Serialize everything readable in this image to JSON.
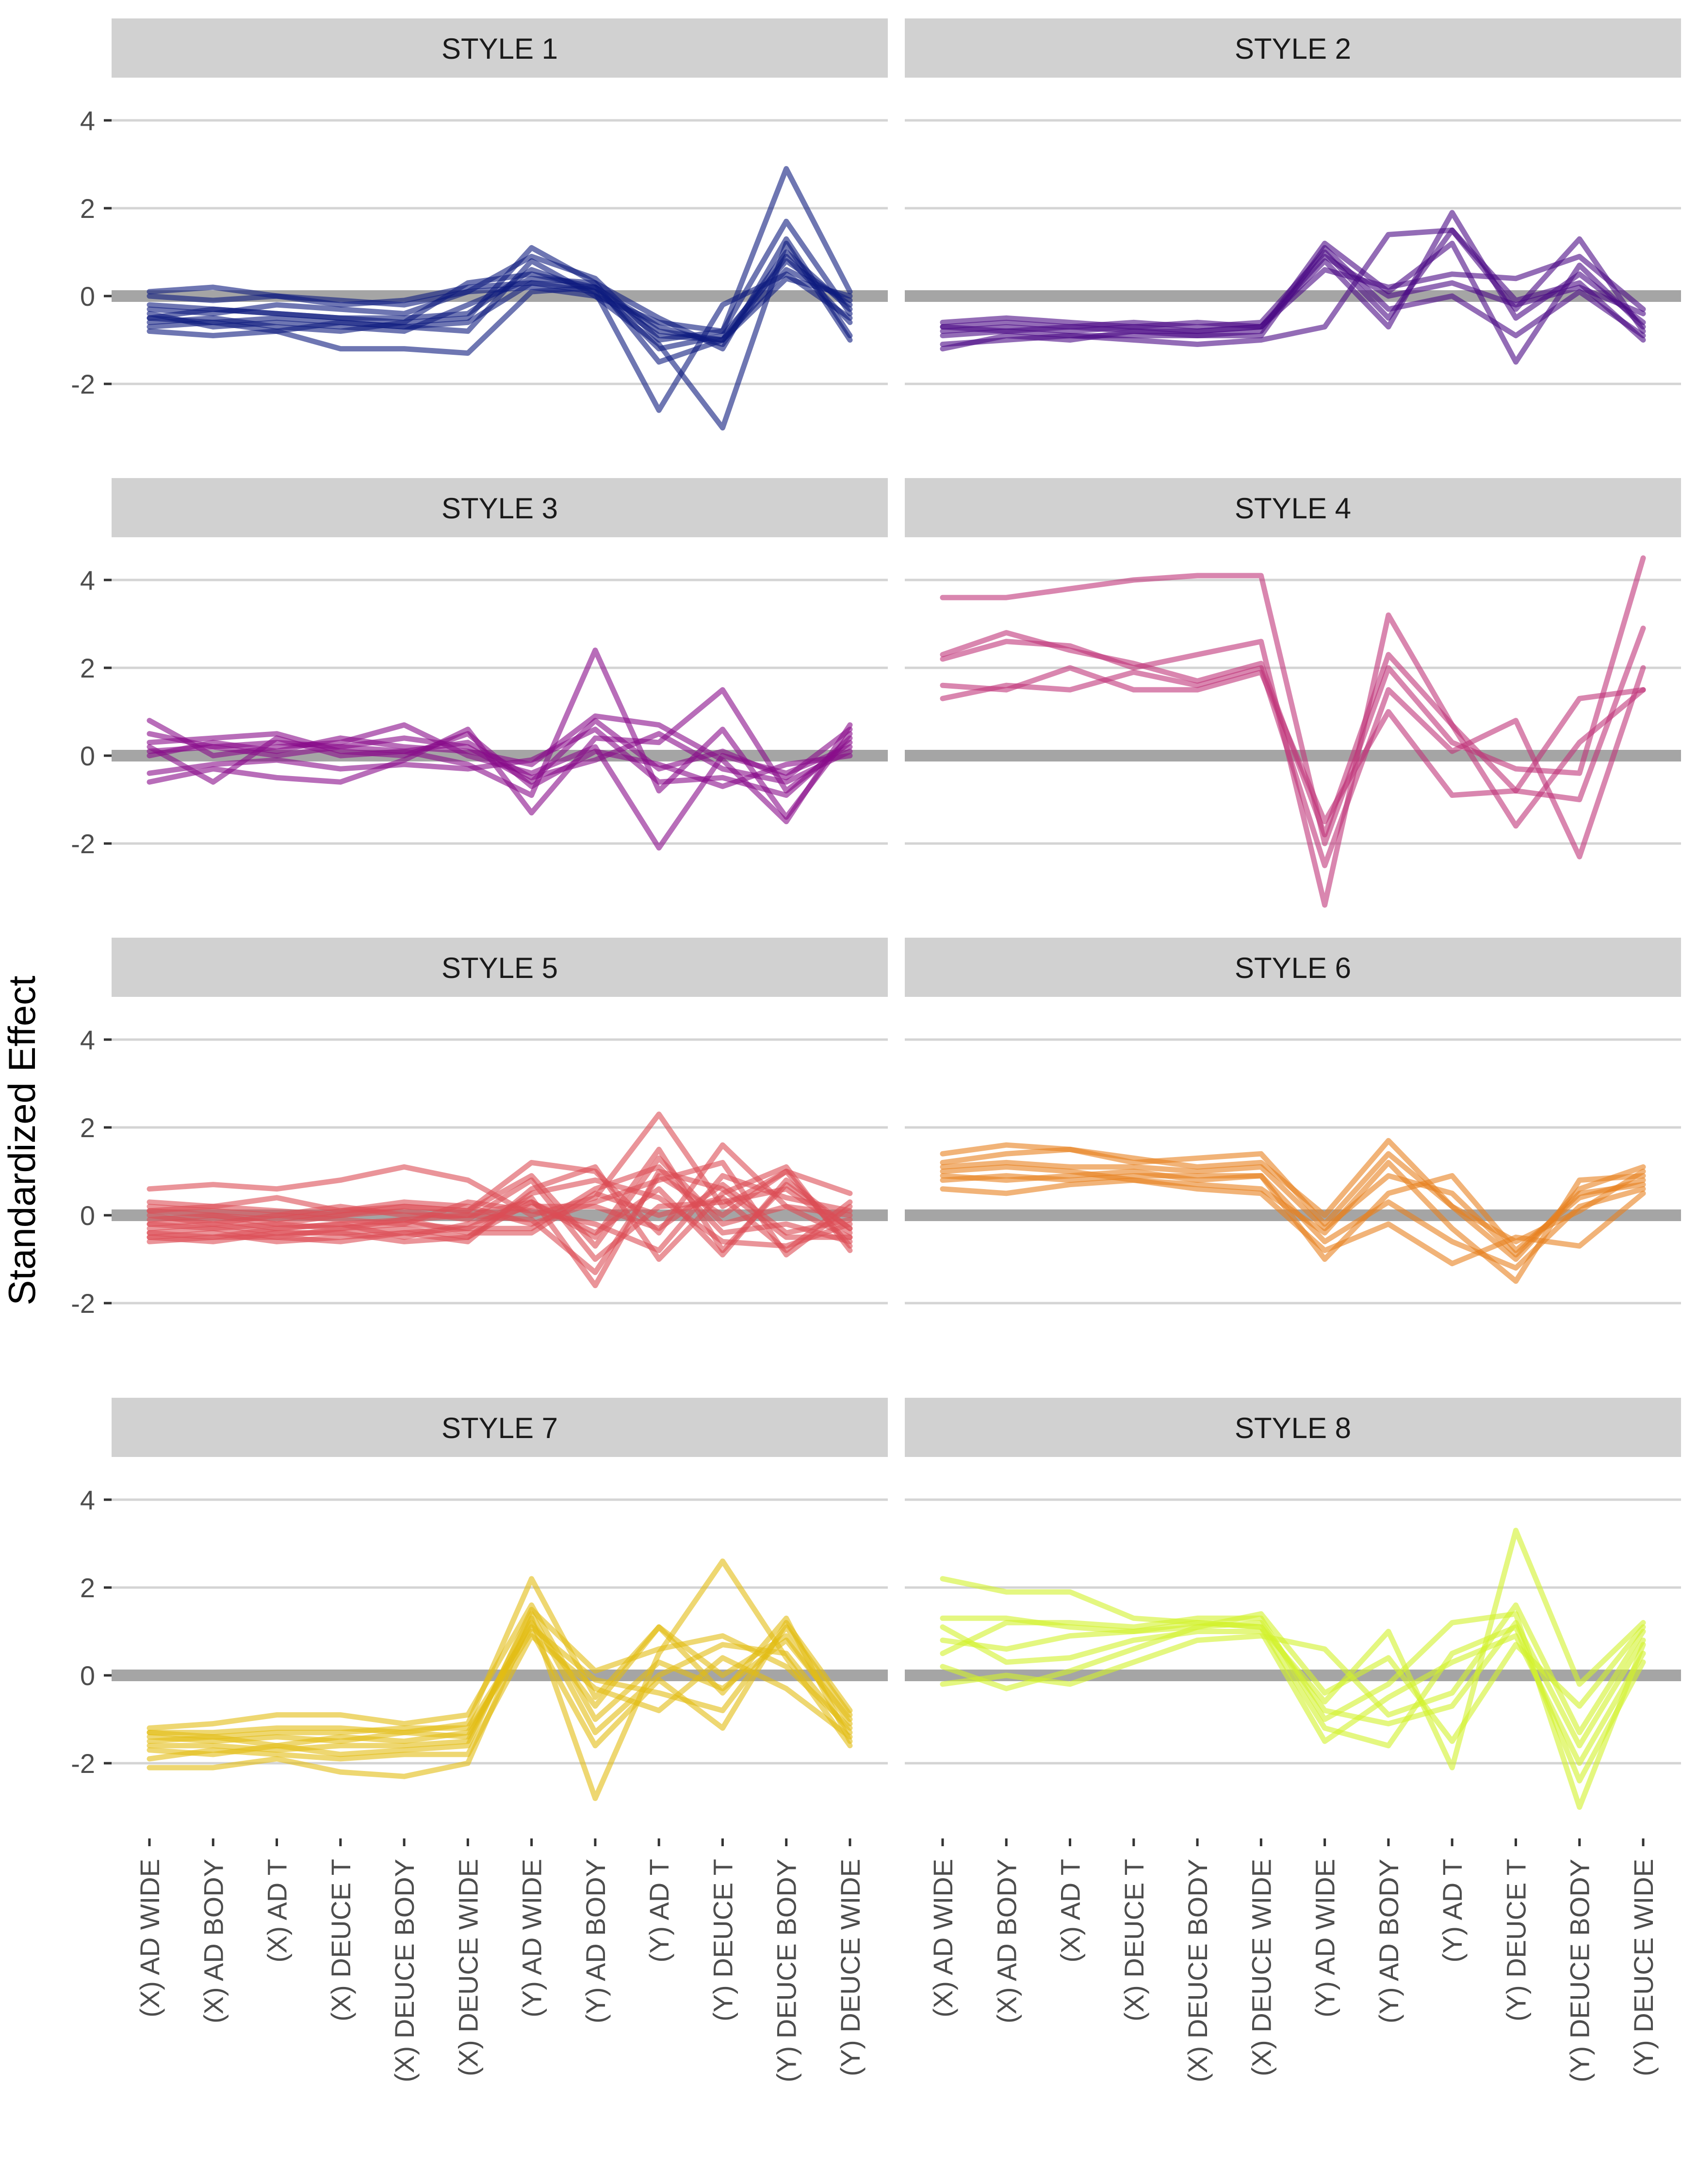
{
  "chart_data": {
    "type": "line",
    "ylabel": "Standardized Effect",
    "yticks": [
      4,
      2,
      0,
      -2
    ],
    "ytick_labels": [
      "4",
      "2",
      "0",
      "-2"
    ],
    "ylim": [
      -3.5,
      4.6
    ],
    "grid": true,
    "legend": "none",
    "categories": [
      "(X) AD WIDE",
      "(X) AD BODY",
      "(X) AD T",
      "(X) DEUCE T",
      "(X) DEUCE BODY",
      "(X) DEUCE WIDE",
      "(Y) AD WIDE",
      "(Y) AD BODY",
      "(Y) AD T",
      "(Y) DEUCE T",
      "(Y) DEUCE BODY",
      "(Y) DEUCE WIDE"
    ],
    "panels": [
      {
        "title": "STYLE 1",
        "color": "#0d1a7e",
        "lines": [
          [
            -0.5,
            -0.6,
            -0.5,
            -0.6,
            -0.7,
            -0.6,
            0.3,
            0.2,
            -0.8,
            -1.0,
            1.0,
            -0.3
          ],
          [
            -0.6,
            -0.5,
            -0.7,
            -0.8,
            -0.6,
            -0.5,
            1.1,
            0.3,
            -1.5,
            -1.0,
            0.4,
            0.0
          ],
          [
            -0.8,
            -0.9,
            -0.8,
            -1.2,
            -1.2,
            -1.3,
            0.1,
            0.2,
            -1.2,
            -0.9,
            0.8,
            -0.2
          ],
          [
            -0.2,
            -0.3,
            -0.4,
            -0.5,
            -0.5,
            -0.4,
            0.6,
            0.1,
            -2.6,
            -0.2,
            0.5,
            -0.5
          ],
          [
            0.1,
            0.2,
            0.0,
            -0.1,
            -0.2,
            0.1,
            0.9,
            0.4,
            -1.0,
            -0.8,
            2.9,
            0.1
          ],
          [
            -0.4,
            -0.7,
            -0.6,
            -0.7,
            -0.8,
            -0.2,
            0.4,
            0.3,
            -0.5,
            -1.2,
            1.3,
            -0.9
          ],
          [
            -0.3,
            -0.4,
            -0.2,
            -0.3,
            -0.4,
            0.1,
            0.2,
            0.0,
            -0.6,
            -0.8,
            1.7,
            -0.4
          ],
          [
            -0.7,
            -0.6,
            -0.8,
            -0.6,
            -0.7,
            -0.8,
            0.8,
            0.0,
            -1.1,
            -3.0,
            1.2,
            -1.0
          ],
          [
            -0.5,
            -0.3,
            -0.4,
            -0.5,
            -0.6,
            0.3,
            0.5,
            0.2,
            -0.7,
            -1.1,
            0.9,
            -0.6
          ],
          [
            0.0,
            -0.1,
            0.0,
            -0.2,
            -0.1,
            0.2,
            0.3,
            0.1,
            -0.9,
            -1.0,
            0.6,
            -0.1
          ]
        ]
      },
      {
        "title": "STYLE 2",
        "color": "#4b0a85",
        "lines": [
          [
            -0.7,
            -0.6,
            -0.7,
            -0.6,
            -0.7,
            -0.6,
            1.0,
            -0.5,
            1.5,
            -0.3,
            1.3,
            -0.8
          ],
          [
            -0.9,
            -0.8,
            -0.9,
            -0.9,
            -0.9,
            -0.8,
            1.2,
            0.1,
            1.2,
            -1.5,
            0.7,
            -0.7
          ],
          [
            -1.1,
            -1.0,
            -0.9,
            -1.0,
            -1.1,
            -1.0,
            -0.7,
            1.4,
            1.5,
            -0.1,
            0.3,
            -1.0
          ],
          [
            -0.8,
            -0.7,
            -0.8,
            -0.7,
            -0.8,
            -0.7,
            0.8,
            -0.7,
            1.9,
            -0.5,
            0.5,
            -0.6
          ],
          [
            -0.6,
            -0.5,
            -0.6,
            -0.7,
            -0.6,
            -0.7,
            0.6,
            0.2,
            0.5,
            0.4,
            0.9,
            -0.3
          ],
          [
            -1.2,
            -0.9,
            -1.0,
            -0.8,
            -0.9,
            -0.9,
            1.1,
            -0.3,
            0.0,
            -0.9,
            0.1,
            -0.9
          ],
          [
            -0.7,
            -0.8,
            -0.7,
            -0.8,
            -0.8,
            -0.7,
            0.9,
            0.0,
            0.3,
            -0.2,
            0.2,
            -0.4
          ]
        ]
      },
      {
        "title": "STYLE 3",
        "color": "#880c8a",
        "lines": [
          [
            0.5,
            0.2,
            0.3,
            0.2,
            0.4,
            0.2,
            -0.6,
            0.8,
            -0.3,
            0.1,
            -0.5,
            0.6
          ],
          [
            0.2,
            -0.6,
            0.4,
            0.0,
            0.1,
            -0.2,
            -0.9,
            2.4,
            -0.8,
            0.6,
            -1.4,
            0.5
          ],
          [
            -0.6,
            -0.3,
            -0.5,
            -0.6,
            -0.1,
            0.6,
            -1.3,
            0.4,
            0.3,
            1.5,
            -0.8,
            0.3
          ],
          [
            0.8,
            0.0,
            0.2,
            0.3,
            0.7,
            0.0,
            -0.4,
            0.2,
            -2.1,
            0.0,
            -0.4,
            0.2
          ],
          [
            0.0,
            0.3,
            0.1,
            0.4,
            0.2,
            0.1,
            -0.2,
            0.9,
            0.7,
            -0.1,
            -1.5,
            0.7
          ],
          [
            0.3,
            0.4,
            0.5,
            0.1,
            0.0,
            0.5,
            -0.7,
            0.1,
            -0.2,
            -0.7,
            -0.2,
            0.0
          ],
          [
            -0.4,
            -0.2,
            -0.1,
            -0.3,
            -0.2,
            -0.3,
            -0.1,
            0.6,
            -0.6,
            -0.5,
            -0.9,
            0.4
          ],
          [
            0.1,
            0.2,
            0.0,
            0.2,
            0.1,
            0.3,
            -0.5,
            -0.1,
            0.5,
            -0.3,
            -0.6,
            0.1
          ]
        ]
      },
      {
        "title": "STYLE 4",
        "color": "#c0357a",
        "lines": [
          [
            3.6,
            3.6,
            3.8,
            4.0,
            4.1,
            4.1,
            -2.0,
            2.0,
            0.3,
            -0.3,
            -0.4,
            4.5
          ],
          [
            2.2,
            2.6,
            2.5,
            2.0,
            2.3,
            2.6,
            -3.4,
            3.2,
            0.7,
            -0.8,
            -1.0,
            2.9
          ],
          [
            1.6,
            1.5,
            2.0,
            1.5,
            1.5,
            1.9,
            -1.5,
            1.0,
            -0.9,
            -0.8,
            1.3,
            1.5
          ],
          [
            1.3,
            1.6,
            1.5,
            1.9,
            1.6,
            2.0,
            -2.5,
            1.5,
            0.1,
            0.8,
            -2.3,
            2.0
          ],
          [
            2.3,
            2.8,
            2.4,
            2.1,
            1.7,
            2.1,
            -1.8,
            2.3,
            0.7,
            -1.6,
            0.3,
            1.5
          ]
        ]
      },
      {
        "title": "STYLE 5",
        "color": "#dc4d55",
        "lines": [
          [
            0.6,
            0.7,
            0.6,
            0.8,
            1.1,
            0.8,
            0.0,
            0.4,
            2.3,
            0.2,
            1.0,
            0.5
          ],
          [
            -0.4,
            -0.3,
            -0.5,
            -0.3,
            -0.2,
            -0.3,
            0.4,
            -1.6,
            1.0,
            0.6,
            -0.5,
            -0.5
          ],
          [
            0.1,
            0.2,
            0.1,
            0.0,
            0.2,
            0.1,
            1.2,
            1.0,
            -0.4,
            1.6,
            0.2,
            0.0
          ],
          [
            -0.2,
            -0.1,
            -0.3,
            -0.2,
            -0.1,
            0.0,
            0.3,
            -0.5,
            1.5,
            -0.8,
            0.7,
            -0.3
          ],
          [
            -0.5,
            -0.4,
            -0.6,
            -0.5,
            -0.4,
            -0.6,
            0.6,
            1.1,
            -1.0,
            0.5,
            1.1,
            -0.8
          ],
          [
            0.3,
            0.2,
            0.4,
            0.1,
            0.3,
            0.2,
            -0.2,
            0.3,
            0.8,
            1.2,
            -0.9,
            0.2
          ],
          [
            -0.1,
            0.0,
            -0.2,
            0.0,
            0.1,
            -0.1,
            0.8,
            -1.0,
            0.2,
            0.3,
            0.6,
            -0.4
          ],
          [
            -0.6,
            -0.5,
            -0.5,
            -0.6,
            -0.4,
            -0.3,
            -0.3,
            0.6,
            1.1,
            -0.4,
            -0.2,
            -0.6
          ],
          [
            0.0,
            -0.2,
            0.0,
            -0.1,
            -0.2,
            0.3,
            0.1,
            -0.2,
            -0.8,
            0.9,
            0.4,
            0.1
          ],
          [
            -0.3,
            -0.2,
            -0.4,
            -0.4,
            -0.3,
            -0.5,
            0.5,
            0.8,
            0.4,
            -0.6,
            -0.7,
            -0.2
          ],
          [
            0.2,
            0.1,
            0.0,
            0.2,
            0.0,
            0.0,
            -0.1,
            -1.3,
            0.9,
            0.0,
            1.0,
            -0.7
          ],
          [
            -0.4,
            -0.5,
            -0.3,
            -0.2,
            -0.5,
            -0.2,
            0.2,
            0.2,
            -0.3,
            0.7,
            -0.4,
            -0.1
          ],
          [
            0.1,
            0.0,
            -0.1,
            0.1,
            0.2,
            0.1,
            0.9,
            -0.7,
            1.3,
            -0.2,
            0.2,
            -0.5
          ],
          [
            -0.2,
            -0.3,
            -0.2,
            -0.3,
            -0.1,
            -0.4,
            -0.4,
            0.5,
            0.0,
            0.4,
            -0.8,
            0.3
          ],
          [
            -0.5,
            -0.6,
            -0.4,
            -0.4,
            -0.6,
            -0.5,
            0.3,
            -0.4,
            0.6,
            -0.9,
            0.8,
            -0.3
          ]
        ]
      },
      {
        "title": "STYLE 6",
        "color": "#e8801e",
        "lines": [
          [
            1.2,
            1.4,
            1.5,
            1.3,
            1.1,
            1.2,
            0.0,
            1.7,
            0.2,
            -1.0,
            0.6,
            1.1
          ],
          [
            0.8,
            0.9,
            0.8,
            0.9,
            0.9,
            0.9,
            -1.0,
            0.5,
            0.9,
            -0.8,
            0.4,
            0.8
          ],
          [
            1.0,
            1.1,
            1.0,
            0.8,
            0.7,
            0.6,
            -0.4,
            1.2,
            -0.3,
            -1.5,
            0.8,
            0.9
          ],
          [
            0.6,
            0.5,
            0.7,
            0.8,
            0.6,
            0.5,
            -0.8,
            -0.2,
            -1.1,
            -0.5,
            -0.7,
            0.5
          ],
          [
            1.4,
            1.6,
            1.5,
            1.2,
            1.3,
            1.4,
            -0.2,
            1.4,
            0.2,
            -0.6,
            0.1,
            1.0
          ],
          [
            0.9,
            0.8,
            0.9,
            1.0,
            0.8,
            0.9,
            -0.6,
            0.3,
            -0.6,
            -1.2,
            0.2,
            0.6
          ],
          [
            1.1,
            1.2,
            1.1,
            1.1,
            1.0,
            1.1,
            -0.3,
            0.9,
            0.5,
            -0.9,
            0.5,
            0.7
          ]
        ]
      },
      {
        "title": "STYLE 7",
        "color": "#e3bd12",
        "lines": [
          [
            -1.3,
            -1.3,
            -1.2,
            -1.2,
            -1.3,
            -1.1,
            2.2,
            -0.5,
            1.1,
            -0.4,
            1.3,
            -1.5
          ],
          [
            -2.1,
            -2.1,
            -1.9,
            -2.2,
            -2.3,
            -2.0,
            1.3,
            -2.8,
            0.5,
            2.6,
            0.4,
            -1.6
          ],
          [
            -1.5,
            -1.4,
            -1.6,
            -1.4,
            -1.5,
            -1.3,
            1.0,
            -1.6,
            -0.1,
            -1.2,
            1.2,
            -0.8
          ],
          [
            -1.7,
            -1.8,
            -1.6,
            -1.8,
            -1.7,
            -1.6,
            1.5,
            0.1,
            0.6,
            0.9,
            0.2,
            -1.2
          ],
          [
            -1.2,
            -1.1,
            -0.9,
            -0.9,
            -1.1,
            -0.9,
            1.6,
            -1.0,
            0.3,
            -0.3,
            0.8,
            -1.0
          ],
          [
            -1.9,
            -1.7,
            -1.8,
            -1.9,
            -1.8,
            -1.8,
            0.9,
            -0.3,
            -0.8,
            0.4,
            -0.3,
            -1.4
          ],
          [
            -1.4,
            -1.5,
            -1.4,
            -1.5,
            -1.3,
            -1.4,
            1.2,
            -0.7,
            1.1,
            0.0,
            0.9,
            -1.1
          ],
          [
            -1.6,
            -1.6,
            -1.7,
            -1.6,
            -1.6,
            -1.5,
            1.4,
            -1.3,
            0.0,
            0.7,
            0.5,
            -1.3
          ],
          [
            -1.3,
            -1.4,
            -1.3,
            -1.3,
            -1.2,
            -1.2,
            1.1,
            -0.1,
            -0.4,
            -0.8,
            1.1,
            -0.9
          ]
        ]
      },
      {
        "title": "STYLE 8",
        "color": "#d2f22c",
        "lines": [
          [
            2.2,
            1.9,
            1.9,
            1.3,
            1.2,
            1.1,
            -0.6,
            1.0,
            -2.1,
            3.3,
            -0.2,
            1.2
          ],
          [
            0.5,
            1.2,
            1.2,
            1.1,
            1.3,
            1.3,
            -1.0,
            -0.2,
            1.2,
            1.4,
            -3.0,
            0.7
          ],
          [
            -0.2,
            0.0,
            -0.2,
            0.3,
            0.8,
            0.9,
            0.6,
            -0.9,
            -0.4,
            1.6,
            -1.3,
            1.0
          ],
          [
            1.1,
            0.3,
            0.4,
            0.8,
            1.0,
            1.0,
            -1.5,
            -0.5,
            0.3,
            0.9,
            -2.0,
            0.5
          ],
          [
            0.8,
            0.6,
            0.9,
            1.0,
            1.1,
            1.2,
            -0.8,
            -1.1,
            -0.7,
            1.2,
            -1.6,
            0.8
          ],
          [
            0.2,
            -0.3,
            0.1,
            0.6,
            1.1,
            1.4,
            -0.4,
            0.4,
            -1.5,
            0.7,
            -0.7,
            1.1
          ],
          [
            1.3,
            1.3,
            1.1,
            1.0,
            1.2,
            1.1,
            -1.2,
            -1.6,
            0.5,
            1.1,
            -2.4,
            0.3
          ]
        ]
      }
    ]
  }
}
